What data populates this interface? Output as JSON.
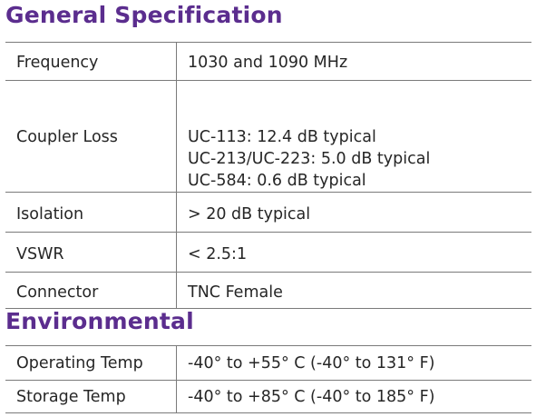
{
  "general": {
    "title": "General Specification",
    "rows": [
      {
        "label": "Frequency",
        "values": [
          "1030 and 1090 MHz"
        ]
      },
      {
        "label": "Coupler Loss",
        "values": [
          "UC-113:  12.4 dB typical",
          "UC-213/UC-223:  5.0 dB typical",
          "UC-584:  0.6 dB typical"
        ]
      },
      {
        "label": "Isolation",
        "values": [
          "> 20 dB typical"
        ]
      },
      {
        "label": "VSWR",
        "values": [
          "< 2.5:1"
        ]
      },
      {
        "label": "Connector",
        "values": [
          "TNC Female"
        ]
      }
    ]
  },
  "environmental": {
    "title": "Environmental",
    "rows": [
      {
        "label": "Operating Temp",
        "values": [
          "-40° to +55° C (-40° to 131° F)"
        ]
      },
      {
        "label": "Storage Temp",
        "values": [
          "-40° to +85° C (-40° to 185° F)"
        ]
      }
    ]
  }
}
